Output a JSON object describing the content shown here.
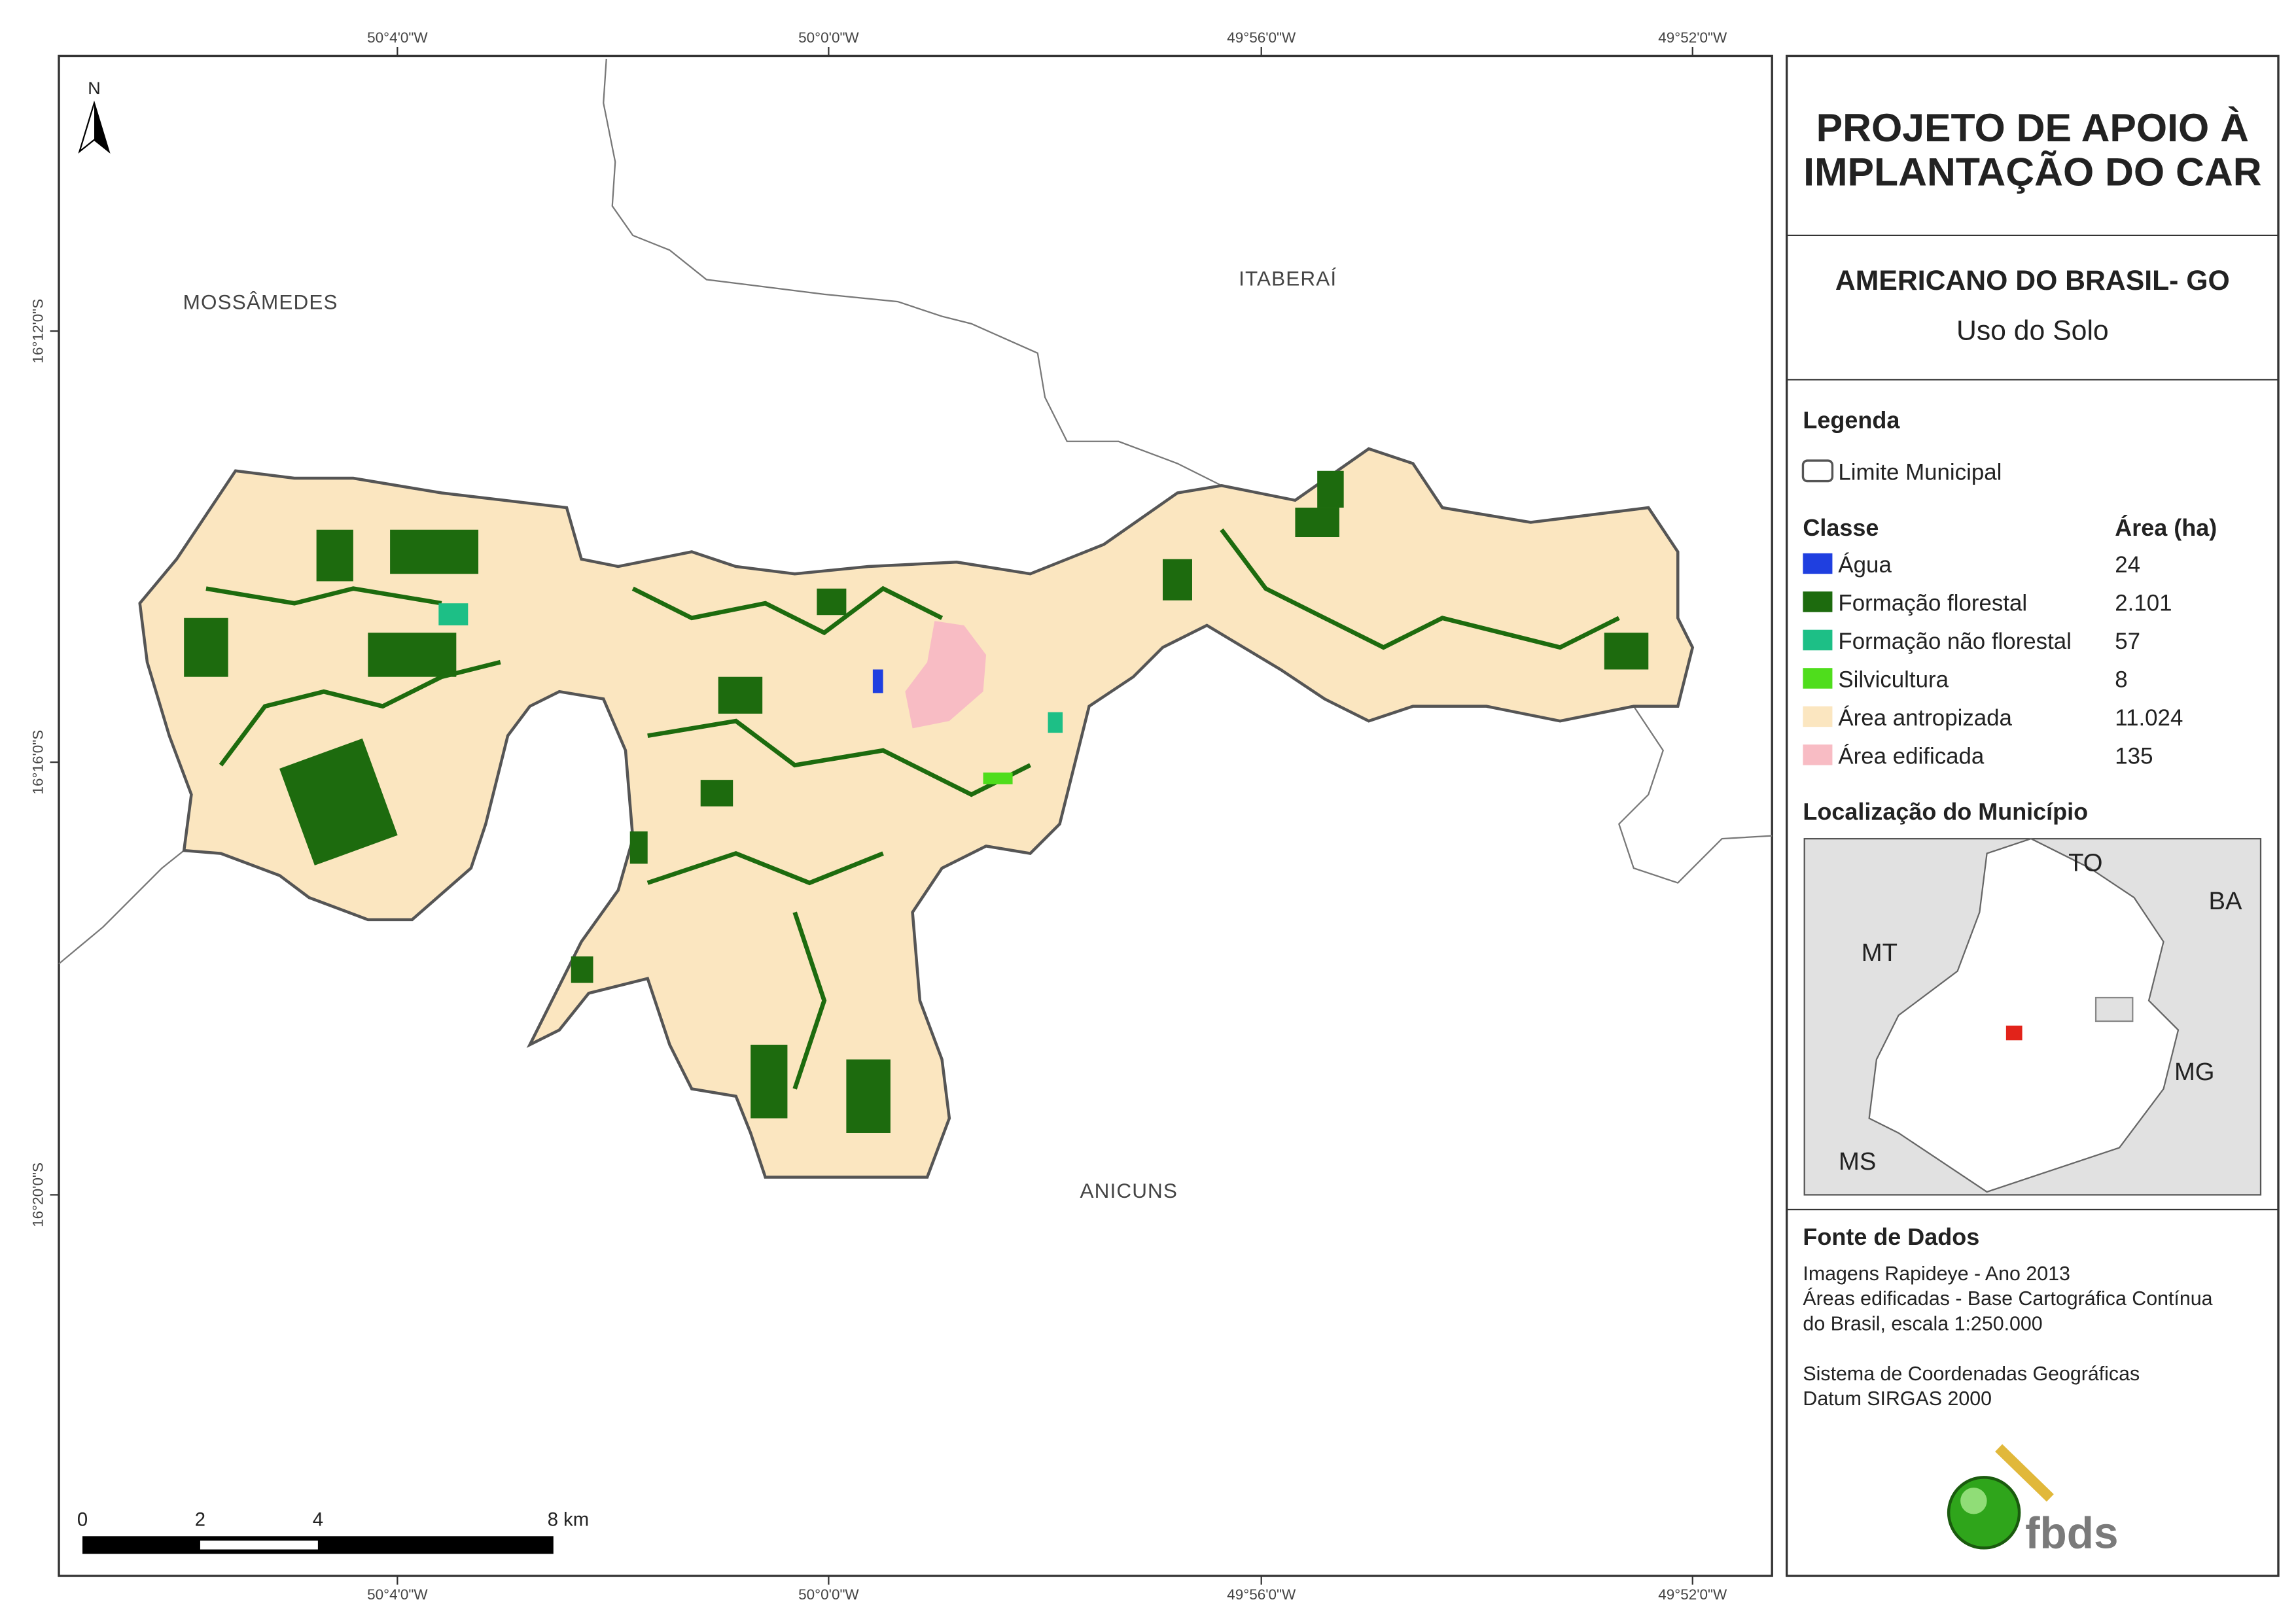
{
  "map": {
    "top_coords": [
      "50°4'0\"W",
      "50°0'0\"W",
      "49°56'0\"W",
      "49°52'0\"W"
    ],
    "bottom_coords": [
      "50°4'0\"W",
      "50°0'0\"W",
      "49°56'0\"W",
      "49°52'0\"W"
    ],
    "left_coords": [
      "16°12'0\"S",
      "16°16'0\"S",
      "16°20'0\"S"
    ],
    "places": [
      "MOSSÂMEDES",
      "ITABERAÍ",
      "ANICUNS"
    ],
    "north": "N",
    "scale_labels": [
      "0",
      "2",
      "4",
      "8 km"
    ]
  },
  "panel": {
    "title_lines": [
      "PROJETO DE APOIO À",
      "IMPLANTAÇÃO DO CAR"
    ],
    "municipality": "AMERICANO DO BRASIL- GO",
    "theme": "Uso do Solo",
    "legend_title": "Legenda",
    "boundary_label": "Limite Municipal",
    "class_header": "Classe",
    "area_header": "Área (ha)",
    "classes": [
      {
        "name": "Água",
        "color": "#1f3fe0",
        "area": "24"
      },
      {
        "name": "Formação florestal",
        "color": "#1d6b0e",
        "area": "2.101"
      },
      {
        "name": "Formação não florestal",
        "color": "#1dbf86",
        "area": "57"
      },
      {
        "name": "Silvicultura",
        "color": "#4fdd1c",
        "area": "8"
      },
      {
        "name": "Área antropizada",
        "color": "#fbe6c0",
        "area": "11.024"
      },
      {
        "name": "Área edificada",
        "color": "#f8bcc4",
        "area": "135"
      }
    ],
    "location_title": "Localização do Município",
    "states": [
      "TO",
      "BA",
      "MT",
      "MG",
      "MS"
    ],
    "sources_title": "Fonte de Dados",
    "sources": [
      "Imagens Rapideye - Ano 2013",
      "Áreas edificadas - Base Cartográfica Contínua",
      "do Brasil, escala 1:250.000",
      "Sistema de Coordenadas Geográficas",
      "Datum SIRGAS 2000"
    ],
    "logo": "fbds"
  }
}
